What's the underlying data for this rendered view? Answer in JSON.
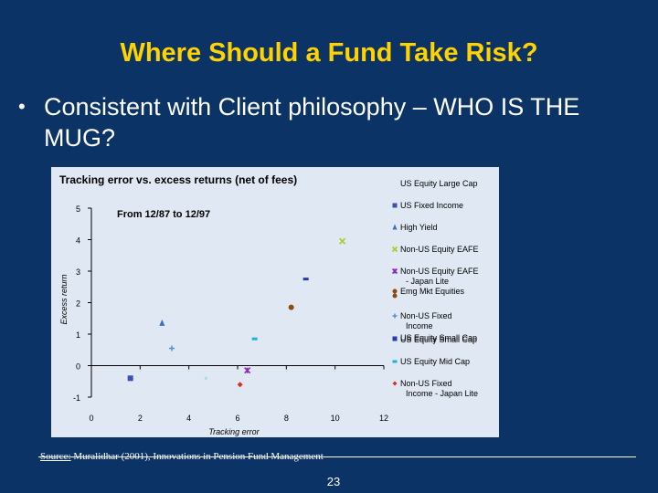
{
  "slide": {
    "title": "Where Should a Fund Take Risk?",
    "bullet_symbol": "•",
    "bullet_text": "Consistent with Client philosophy – WHO IS THE MUG?",
    "source_prefix": "Source:",
    "source_text": " Muralidhar (2001), Innovations in Pension Fund Management",
    "page_number": "23"
  },
  "colors": {
    "background": "#0b3366",
    "title": "#ffd200",
    "chart_panel": "#dfe8f3"
  },
  "chart_data": {
    "type": "scatter",
    "title": "Tracking error vs. excess returns (net of fees)",
    "subtitle": "From 12/87 to 12/97",
    "xlabel": "Tracking error",
    "ylabel": "Excess return",
    "xlim": [
      0,
      12
    ],
    "ylim": [
      -1,
      5
    ],
    "x_ticks": [
      "0",
      "2",
      "4",
      "6",
      "8",
      "10",
      "12"
    ],
    "y_ticks": [
      "5",
      "4",
      "3",
      "2",
      "1",
      "0",
      "-1"
    ],
    "grid": false,
    "legend_position": "right",
    "series": [
      {
        "name": "US Equity Large Cap",
        "marker": "none",
        "color": "#dfe8f3",
        "x": null,
        "y": null
      },
      {
        "name": "US Fixed Income",
        "marker": "square",
        "color": "#3a4fb8",
        "x": 1.6,
        "y": -0.4
      },
      {
        "name": "High Yield",
        "marker": "triangle",
        "color": "#3a6fc8",
        "x": 2.9,
        "y": 1.35
      },
      {
        "name": "Non-US Equity EAFE",
        "marker": "x",
        "color": "#a8cc20",
        "x": 10.3,
        "y": 3.95
      },
      {
        "name": "Non-US Equity EAFE - Japan Lite",
        "marker": "star",
        "color": "#8a2bb8",
        "x": 6.4,
        "y": -0.15
      },
      {
        "name": "Emg Mkt Equities",
        "marker": "circle",
        "color": "#8a4a10",
        "x": 8.2,
        "y": 1.85
      },
      {
        "name": "Non-US Fixed Income",
        "marker": "plus",
        "color": "#4a8fd0",
        "x": 3.3,
        "y": 0.55
      },
      {
        "name": "US Equity Small Cap",
        "marker": "dash",
        "color": "#2a3aa8",
        "x": 8.8,
        "y": 2.75
      },
      {
        "name": "US Equity Mid Cap",
        "marker": "dash",
        "color": "#20b0e0",
        "x": 6.7,
        "y": 0.85
      },
      {
        "name": "Non-US Fixed Income - Japan Lite",
        "marker": "diamond",
        "color": "#d8301a",
        "x": 6.1,
        "y": -0.6
      },
      {
        "name": "",
        "marker": "dot",
        "color": "#a8dcea",
        "x": 4.7,
        "y": -0.4
      }
    ]
  }
}
